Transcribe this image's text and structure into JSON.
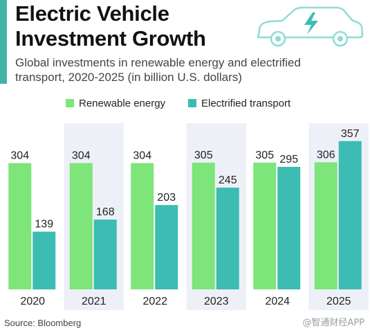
{
  "header": {
    "title_line1": "Electric Vehicle",
    "title_line2": "Investment Growth",
    "subtitle_line1": "Global investments in renewable energy and electrified",
    "subtitle_line2": "transport, 2020-2025 (in billion U.S. dollars)",
    "icon": "electric-car-icon"
  },
  "colors": {
    "accent": "#3fb3a6",
    "renewable": "#7de57a",
    "transport": "#3cbcb2",
    "band": "#eef0f8"
  },
  "chart_data": {
    "type": "bar",
    "title": "Electric Vehicle Investment Growth",
    "subtitle": "Global investments in renewable energy and electrified transport, 2020-2025 (in billion U.S. dollars)",
    "categories": [
      "2020",
      "2021",
      "2022",
      "2023",
      "2024",
      "2025"
    ],
    "series": [
      {
        "name": "Renewable energy",
        "values": [
          304,
          304,
          304,
          305,
          305,
          306
        ],
        "color": "#7de57a"
      },
      {
        "name": "Electrified transport",
        "values": [
          139,
          168,
          203,
          245,
          295,
          357
        ],
        "color": "#3cbcb2"
      }
    ],
    "ylim": [
      0,
      400
    ],
    "grid": false,
    "legend_position": "top",
    "data_labels": true,
    "alternating_bands": true
  },
  "source": "Source: Bloomberg",
  "watermark": "@智通财经APP"
}
